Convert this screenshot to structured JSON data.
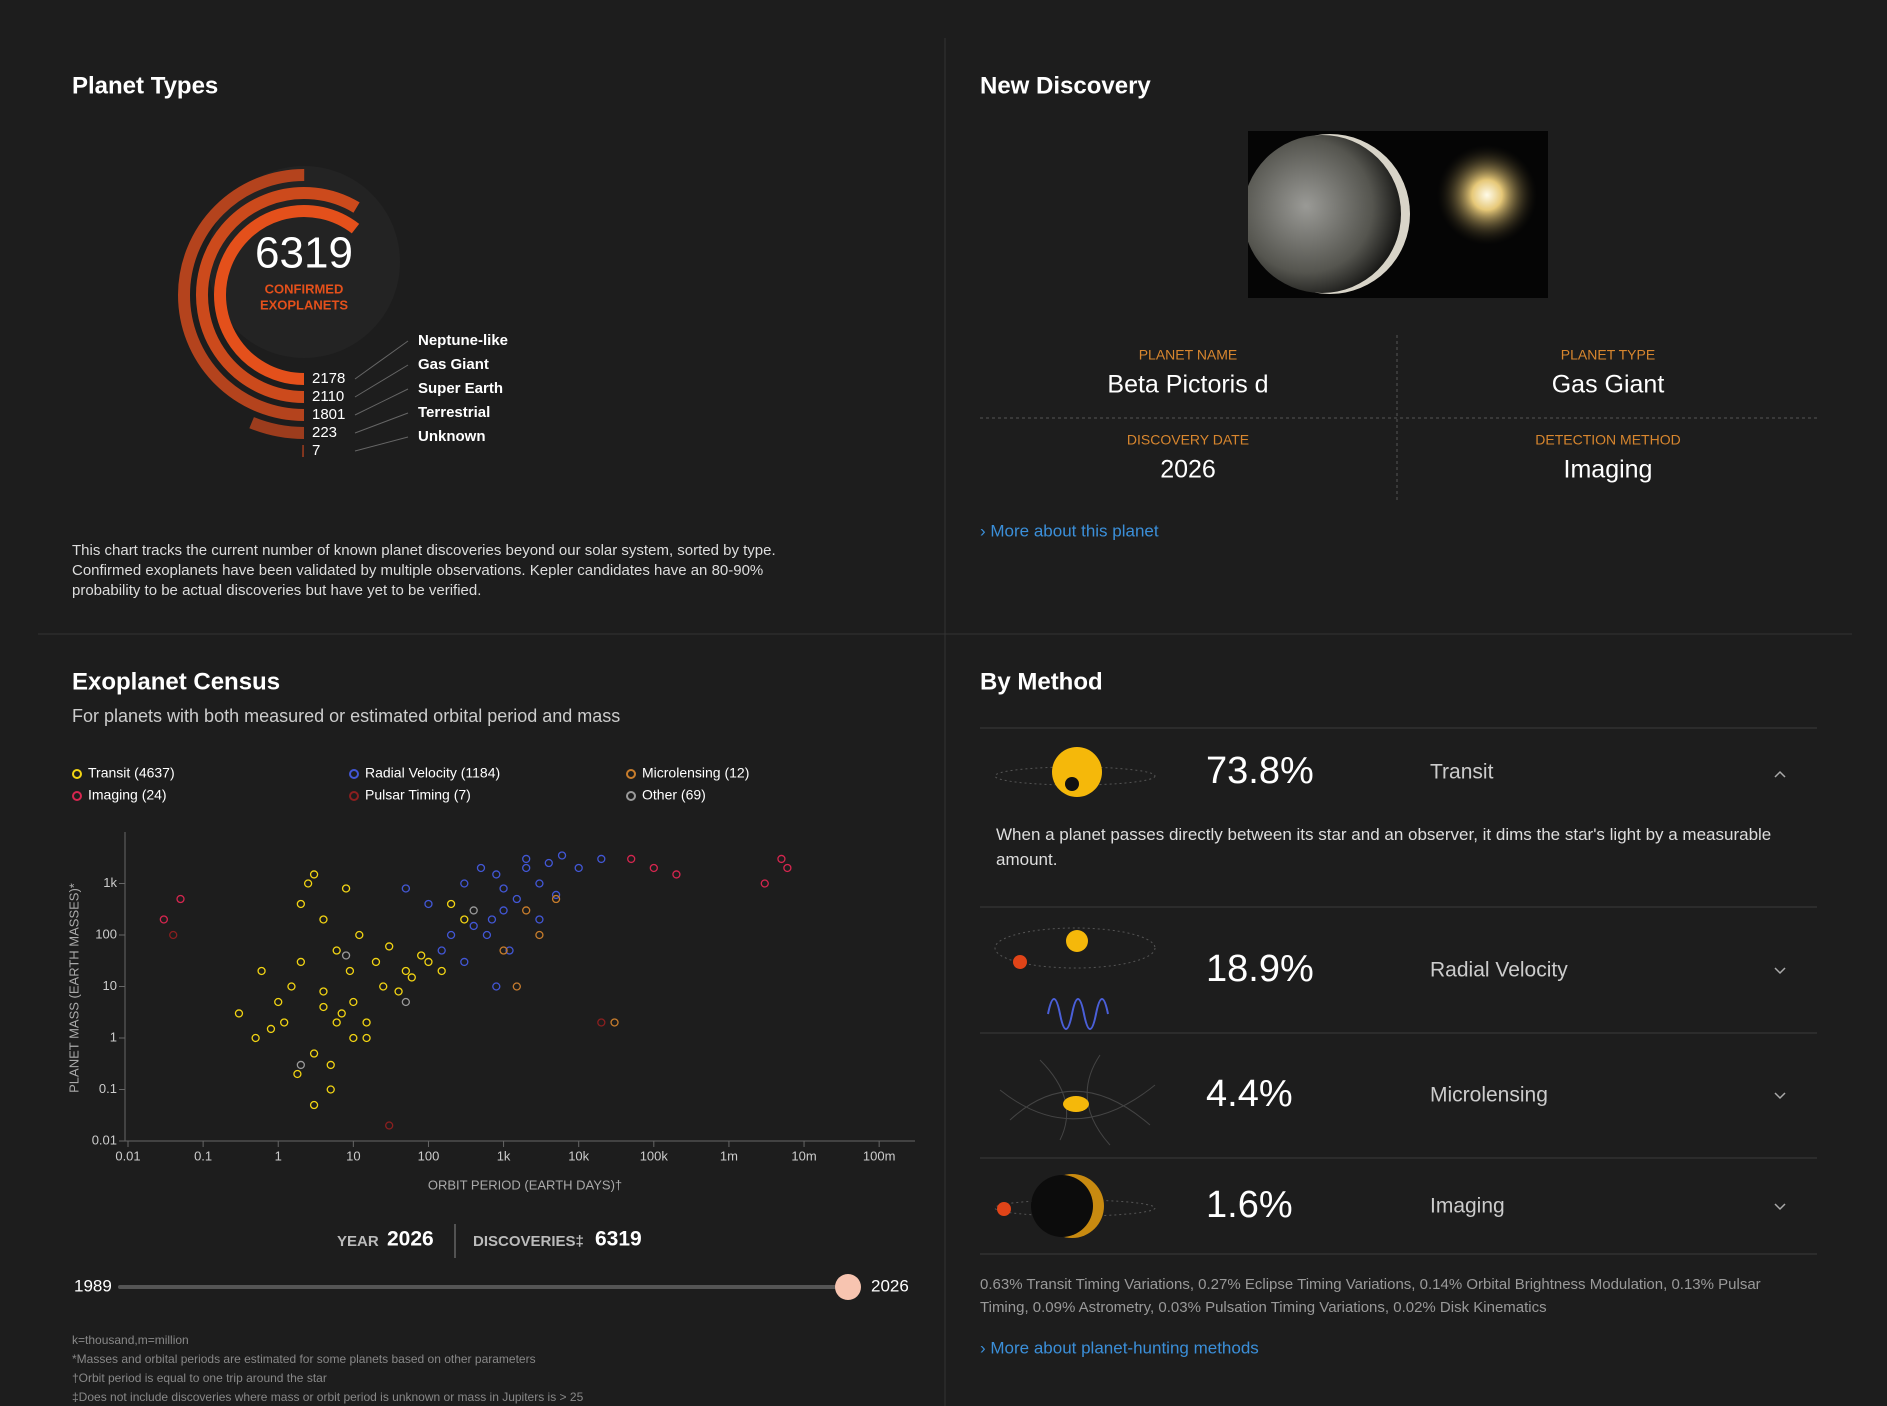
{
  "planet_types": {
    "title": "Planet Types",
    "total": 6319,
    "total_label": [
      "CONFIRMED",
      "EXOPLANETS"
    ],
    "chart_data": {
      "type": "radial-bar",
      "categories": [
        "Neptune-like",
        "Gas Giant",
        "Super Earth",
        "Terrestrial",
        "Unknown"
      ],
      "values": [
        2178,
        2110,
        1801,
        223,
        7
      ],
      "colors": [
        "#e4501b",
        "#cc4a1c",
        "#b4431d",
        "#9c3c1d",
        "#84361e"
      ]
    },
    "description": "This chart tracks the current number of known planet discoveries beyond our solar system, sorted by type. Confirmed exoplanets have been validated by multiple observations. Kepler candidates have an 80-90% probability to be actual discoveries but have yet to be verified."
  },
  "new_discovery": {
    "title": "New Discovery",
    "fields": [
      {
        "label": "PLANET NAME",
        "value": "Beta Pictoris d"
      },
      {
        "label": "PLANET TYPE",
        "value": "Gas Giant"
      },
      {
        "label": "DISCOVERY DATE",
        "value": "2026"
      },
      {
        "label": "DETECTION METHOD",
        "value": "Imaging"
      }
    ],
    "link": "› More about this planet"
  },
  "census": {
    "title": "Exoplanet Census",
    "subtitle": "For planets with both measured or estimated orbital period and mass",
    "chart_data": {
      "type": "scatter",
      "x_label": "ORBIT PERIOD (EARTH DAYS)†",
      "y_label": "PLANET MASS (EARTH MASSES)*",
      "log_x": true,
      "log_y": true,
      "xlim": [
        0.01,
        300000000
      ],
      "ylim": [
        0.01,
        10000
      ],
      "xticks": [
        0.01,
        0.1,
        1,
        10,
        100,
        {
          "value": 1000,
          "label": "1k"
        },
        {
          "value": 10000,
          "label": "10k"
        },
        {
          "value": 100000,
          "label": "100k"
        },
        {
          "value": 1000000,
          "label": "1m"
        },
        {
          "value": 10000000,
          "label": "10m"
        },
        {
          "value": 100000000,
          "label": "100m"
        }
      ],
      "yticks": [
        0.01,
        0.1,
        1,
        10,
        100,
        {
          "value": 1000,
          "label": "1k"
        }
      ],
      "series": [
        {
          "name": "Transit (4637)",
          "color": "#f2d413",
          "x": [
            0.3,
            0.5,
            0.8,
            1,
            1.2,
            1.5,
            2,
            2.5,
            3,
            3,
            4,
            4,
            5,
            6,
            7,
            8,
            9,
            10,
            12,
            15,
            20,
            25,
            30,
            40,
            50,
            60,
            80,
            100,
            150,
            200,
            300,
            3,
            5,
            2,
            10,
            1.8,
            6,
            0.6,
            4,
            15
          ],
          "values": [
            3,
            1,
            1.5,
            5,
            2,
            10,
            400,
            1000,
            1500,
            0.5,
            8,
            200,
            0.3,
            50,
            3,
            800,
            20,
            5,
            100,
            2,
            30,
            10,
            60,
            8,
            20,
            15,
            40,
            30,
            20,
            400,
            200,
            0.05,
            0.1,
            30,
            1,
            0.2,
            2,
            20,
            4,
            1
          ]
        },
        {
          "name": "Radial Velocity (1184)",
          "color": "#4257d6",
          "x": [
            300,
            500,
            800,
            1000,
            1500,
            2000,
            3000,
            4000,
            5000,
            1000,
            700,
            400,
            200,
            100,
            50,
            2000,
            6000,
            10000,
            20000,
            300,
            1200,
            800,
            3000,
            150,
            600
          ],
          "values": [
            1000,
            2000,
            1500,
            800,
            500,
            3000,
            1000,
            2500,
            600,
            300,
            200,
            150,
            100,
            400,
            800,
            2000,
            3500,
            2000,
            3000,
            30,
            50,
            10,
            200,
            50,
            100
          ]
        },
        {
          "name": "Microlensing (12)",
          "color": "#c87d2c",
          "x": [
            1000,
            2000,
            3000,
            5000,
            1500,
            30000
          ],
          "values": [
            50,
            300,
            100,
            500,
            10,
            2
          ]
        },
        {
          "name": "Imaging (24)",
          "color": "#d6264f",
          "x": [
            0.03,
            0.05,
            50000,
            100000,
            200000,
            3000000,
            5000000,
            6000000
          ],
          "values": [
            200,
            500,
            3000,
            2000,
            1500,
            1000,
            3000,
            2000
          ]
        },
        {
          "name": "Pulsar Timing (7)",
          "color": "#8b1f1f",
          "x": [
            30,
            20000,
            0.04
          ],
          "values": [
            0.02,
            2,
            100
          ]
        },
        {
          "name": "Other (69)",
          "color": "#9a9a9a",
          "x": [
            2,
            50,
            400,
            8
          ],
          "values": [
            0.3,
            5,
            300,
            40
          ]
        }
      ]
    },
    "year_label": "YEAR",
    "year": 2026,
    "discoveries_label": "DISCOVERIES‡",
    "discoveries": 6319,
    "slider_range": [
      1989,
      2026
    ],
    "footnotes": [
      "k=thousand,m=million",
      "*Masses and orbital periods are estimated for some planets based on other parameters",
      "†Orbit period is equal to one trip around the star",
      "‡Does not include discoveries where mass or orbit period is unknown or mass in Jupiters is > 25"
    ]
  },
  "by_method": {
    "title": "By Method",
    "methods": [
      {
        "percent": {
          "value": 73.8,
          "label": "73.8%"
        },
        "name": "Transit",
        "description": "When a planet passes directly between its star and an observer, it dims the star's light by a measurable amount."
      },
      {
        "percent": {
          "value": 18.9,
          "label": "18.9%"
        },
        "name": "Radial Velocity"
      },
      {
        "percent": {
          "value": 4.4,
          "label": "4.4%"
        },
        "name": "Microlensing"
      },
      {
        "percent": {
          "value": 1.6,
          "label": "1.6%"
        },
        "name": "Imaging"
      }
    ],
    "other_text": "0.63% Transit Timing Variations, 0.27% Eclipse Timing Variations, 0.14% Orbital Brightness Modulation, 0.13% Pulsar Timing, 0.09% Astrometry, 0.03% Pulsation Timing Variations, 0.02% Disk Kinematics",
    "link": "› More about planet-hunting methods"
  }
}
